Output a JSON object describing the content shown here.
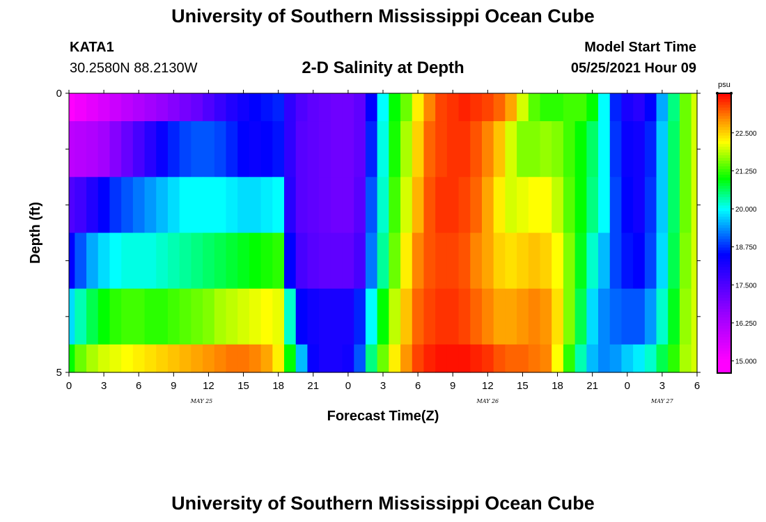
{
  "header": {
    "title": "University of Southern Mississippi Ocean Cube",
    "station": "KATA1",
    "coords": "30.2580N  88.2130W",
    "plot_title": "2-D Salinity at Depth",
    "model_start_label": "Model Start Time",
    "model_start_value": "05/25/2021 Hour 09"
  },
  "footer": {
    "title": "University of Southern Mississippi Ocean Cube"
  },
  "chart_data": {
    "type": "heatmap",
    "title": "2-D Salinity at Depth",
    "xlabel": "Forecast Time(Z)",
    "ylabel": "Depth (ft)",
    "x_tick_labels": [
      "0",
      "3",
      "6",
      "9",
      "12",
      "15",
      "18",
      "21",
      "0",
      "3",
      "6",
      "9",
      "12",
      "15",
      "18",
      "21",
      "0",
      "3",
      "6"
    ],
    "date_labels": [
      {
        "label": "MAY 25",
        "tick_index": 3.8
      },
      {
        "label": "MAY 26",
        "tick_index": 12
      },
      {
        "label": "MAY 27",
        "tick_index": 17
      }
    ],
    "y_tick_labels": [
      "0",
      "5"
    ],
    "ylim": [
      0,
      5
    ],
    "colorbar": {
      "unit": "psu",
      "range": [
        14.6,
        23.8
      ],
      "tick_labels": [
        "15.000",
        "16.250",
        "17.500",
        "18.750",
        "20.000",
        "21.250",
        "22.500"
      ],
      "tick_values": [
        15.0,
        16.25,
        17.5,
        18.75,
        20.0,
        21.25,
        22.5
      ]
    },
    "depth_layers": [
      "0-0.5",
      "0.5-1.5",
      "1.5-2.5",
      "2.5-3.5",
      "3.5-4.5",
      "4.5-5"
    ],
    "hours": [
      0,
      1,
      2,
      3,
      4,
      5,
      6,
      7,
      8,
      9,
      10,
      11,
      12,
      13,
      14,
      15,
      16,
      17,
      18,
      19,
      20,
      21,
      22,
      23,
      24,
      25,
      26,
      27,
      28,
      29,
      30,
      31,
      32,
      33,
      34,
      35,
      36,
      37,
      38,
      39,
      40,
      41,
      42,
      43,
      44,
      45,
      46,
      47,
      48,
      49,
      50,
      51,
      52,
      53,
      54
    ],
    "values": [
      [
        15.0,
        15.2,
        15.4,
        15.6,
        15.8,
        16.0,
        16.2,
        16.4,
        16.6,
        16.8,
        17.0,
        17.2,
        17.5,
        17.8,
        18.1,
        18.3,
        18.5,
        18.6,
        18.7,
        17.9,
        17.5,
        17.3,
        17.2,
        17.1,
        17.1,
        17.3,
        18.5,
        20.0,
        21.0,
        21.5,
        22.3,
        23.0,
        23.4,
        23.5,
        23.6,
        23.5,
        23.4,
        23.2,
        22.8,
        22.0,
        21.4,
        21.2,
        21.2,
        21.3,
        21.3,
        21.0,
        20.0,
        18.7,
        18.2,
        18.0,
        18.5,
        19.5,
        20.5,
        21.5,
        22.0
      ],
      [
        16.0,
        16.1,
        16.2,
        16.4,
        16.8,
        17.2,
        17.6,
        18.0,
        18.4,
        18.7,
        18.9,
        19.0,
        19.0,
        18.9,
        18.7,
        18.5,
        18.4,
        18.5,
        18.6,
        17.9,
        17.4,
        17.3,
        17.2,
        17.1,
        17.1,
        17.3,
        18.7,
        20.1,
        21.1,
        21.8,
        22.5,
        23.2,
        23.4,
        23.5,
        23.5,
        23.3,
        23.0,
        22.6,
        22.0,
        21.6,
        21.6,
        21.7,
        21.6,
        21.3,
        21.0,
        20.6,
        20.0,
        18.8,
        18.4,
        18.3,
        18.7,
        19.7,
        20.6,
        21.5,
        22.0
      ],
      [
        17.5,
        17.7,
        18.1,
        18.5,
        18.8,
        19.0,
        19.2,
        19.4,
        19.6,
        19.8,
        20.0,
        20.0,
        20.0,
        20.0,
        19.9,
        19.8,
        19.8,
        19.9,
        20.0,
        18.0,
        17.4,
        17.3,
        17.2,
        17.1,
        17.1,
        17.4,
        19.0,
        20.2,
        21.3,
        22.0,
        22.7,
        23.3,
        23.5,
        23.5,
        23.4,
        23.2,
        22.8,
        22.3,
        22.0,
        22.1,
        22.2,
        22.2,
        21.9,
        21.4,
        21.0,
        20.5,
        20.0,
        18.9,
        18.5,
        18.3,
        18.8,
        19.7,
        20.6,
        21.5,
        22.0
      ],
      [
        18.5,
        19.0,
        19.5,
        19.8,
        20.0,
        20.1,
        20.1,
        20.1,
        20.2,
        20.3,
        20.4,
        20.5,
        20.6,
        20.7,
        20.8,
        20.9,
        21.0,
        21.1,
        21.2,
        18.5,
        17.6,
        17.4,
        17.3,
        17.3,
        17.3,
        17.6,
        19.2,
        20.4,
        21.5,
        22.3,
        23.0,
        23.3,
        23.4,
        23.4,
        23.3,
        23.0,
        22.8,
        22.5,
        22.4,
        22.5,
        22.6,
        22.5,
        22.2,
        21.6,
        20.9,
        20.2,
        19.6,
        18.9,
        18.6,
        18.5,
        18.9,
        19.8,
        20.7,
        21.6,
        22.0
      ],
      [
        19.8,
        20.3,
        20.7,
        21.0,
        21.2,
        21.3,
        21.3,
        21.2,
        21.2,
        21.3,
        21.4,
        21.5,
        21.6,
        21.8,
        21.9,
        22.0,
        22.1,
        22.2,
        22.1,
        20.2,
        18.5,
        18.3,
        18.2,
        18.2,
        18.2,
        18.7,
        20.0,
        21.0,
        21.9,
        22.6,
        23.2,
        23.4,
        23.5,
        23.5,
        23.4,
        23.2,
        23.0,
        22.8,
        22.8,
        22.9,
        23.0,
        22.9,
        22.4,
        21.6,
        20.7,
        19.8,
        19.3,
        19.1,
        19.0,
        19.0,
        19.4,
        20.2,
        20.9,
        21.7,
        22.0
      ],
      [
        21.0,
        21.5,
        21.8,
        22.0,
        22.1,
        22.2,
        22.3,
        22.4,
        22.5,
        22.6,
        22.7,
        22.8,
        22.9,
        23.0,
        23.1,
        23.1,
        23.0,
        22.8,
        22.3,
        21.0,
        19.6,
        18.4,
        18.2,
        18.2,
        18.3,
        19.0,
        20.5,
        21.5,
        22.3,
        22.9,
        23.4,
        23.6,
        23.7,
        23.7,
        23.7,
        23.6,
        23.5,
        23.3,
        23.2,
        23.2,
        23.1,
        23.0,
        22.2,
        21.2,
        20.3,
        19.6,
        19.3,
        19.4,
        19.7,
        19.9,
        20.2,
        20.7,
        21.2,
        21.8,
        22.0
      ]
    ]
  }
}
